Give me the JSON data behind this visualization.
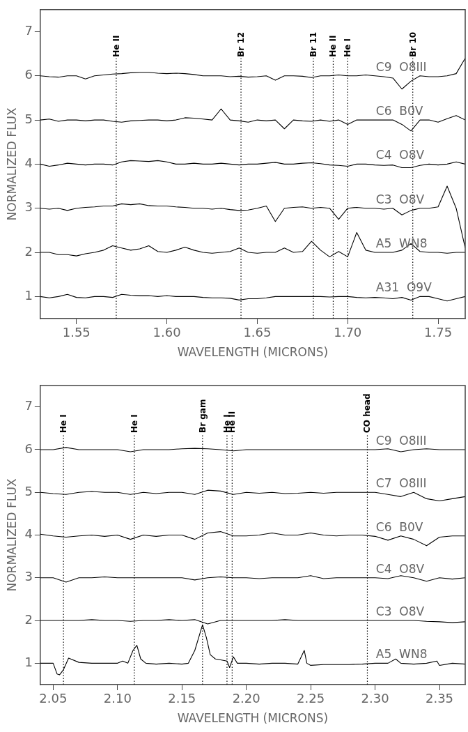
{
  "chart_data": [
    {
      "type": "line",
      "xlabel": "WAVELENGTH (MICRONS)",
      "ylabel": "NORMALIZED FLUX",
      "grid": false,
      "legend": false,
      "marker": "none",
      "line_style": "solid",
      "xlim": [
        1.53,
        1.765
      ],
      "ylim": [
        0.5,
        7.5
      ],
      "xticks": [
        1.55,
        {
          "value": 1.6,
          "label": "1.60"
        },
        1.65,
        {
          "value": 1.7,
          "label": "1.70"
        },
        1.75
      ],
      "yticks": [
        1,
        2,
        3,
        4,
        5,
        6,
        7
      ],
      "x": [
        1.53,
        1.535,
        1.54,
        1.545,
        1.55,
        1.555,
        1.56,
        1.565,
        1.57,
        1.575,
        1.58,
        1.585,
        1.59,
        1.595,
        1.6,
        1.605,
        1.61,
        1.615,
        1.62,
        1.625,
        1.63,
        1.635,
        1.64,
        1.645,
        1.65,
        1.655,
        1.66,
        1.665,
        1.67,
        1.675,
        1.68,
        1.685,
        1.69,
        1.695,
        1.7,
        1.705,
        1.71,
        1.715,
        1.72,
        1.725,
        1.73,
        1.735,
        1.74,
        1.745,
        1.75,
        1.755,
        1.76,
        1.765
      ],
      "series": [
        {
          "name": "C9  O8III",
          "color": "#000000",
          "values": [
            6.0,
            5.98,
            5.97,
            6.0,
            6.0,
            5.93,
            6.0,
            6.02,
            6.04,
            6.05,
            6.07,
            6.08,
            6.08,
            6.06,
            6.05,
            6.06,
            6.05,
            6.03,
            6.0,
            6.0,
            6.0,
            5.98,
            5.99,
            5.97,
            5.98,
            6.0,
            5.9,
            6.0,
            6.0,
            5.99,
            5.96,
            6.0,
            6.0,
            6.02,
            6.0,
            6.0,
            6.02,
            6.0,
            5.98,
            5.95,
            5.7,
            5.88,
            6.0,
            5.98,
            5.98,
            6.0,
            6.05,
            6.4
          ]
        },
        {
          "name": "C6  B0V",
          "color": "#000000",
          "values": [
            5.0,
            5.02,
            4.97,
            5.0,
            5.0,
            4.98,
            5.0,
            5.0,
            4.97,
            4.95,
            4.98,
            4.99,
            5.0,
            5.0,
            4.98,
            5.0,
            5.05,
            5.04,
            5.02,
            5.0,
            5.25,
            5.0,
            4.98,
            4.95,
            5.0,
            4.98,
            5.0,
            4.8,
            5.0,
            4.98,
            4.97,
            5.0,
            4.97,
            5.0,
            4.9,
            5.0,
            5.0,
            5.0,
            5.0,
            5.0,
            4.9,
            4.75,
            5.0,
            5.0,
            4.95,
            5.03,
            5.1,
            5.0
          ]
        },
        {
          "name": "C4  O8V",
          "color": "#000000",
          "values": [
            4.0,
            3.95,
            3.98,
            4.02,
            4.0,
            3.98,
            4.0,
            4.0,
            3.98,
            4.05,
            4.08,
            4.07,
            4.06,
            4.08,
            4.05,
            4.0,
            4.0,
            4.02,
            4.0,
            4.0,
            4.02,
            4.0,
            3.98,
            4.0,
            4.0,
            4.02,
            4.04,
            4.0,
            4.0,
            4.02,
            4.03,
            4.01,
            3.98,
            3.97,
            3.95,
            4.0,
            4.0,
            3.98,
            3.97,
            3.98,
            3.92,
            3.92,
            3.97,
            4.0,
            3.98,
            4.0,
            4.05,
            4.0
          ]
        },
        {
          "name": "C3  O8V",
          "color": "#000000",
          "values": [
            3.0,
            2.98,
            3.0,
            2.95,
            3.0,
            3.02,
            3.03,
            3.05,
            3.05,
            3.1,
            3.08,
            3.1,
            3.06,
            3.05,
            3.05,
            3.03,
            3.02,
            3.0,
            3.0,
            2.98,
            3.0,
            2.97,
            2.95,
            2.96,
            3.0,
            3.05,
            2.7,
            3.0,
            3.02,
            3.03,
            3.0,
            3.02,
            3.0,
            2.75,
            3.0,
            3.02,
            3.0,
            3.0,
            2.98,
            3.0,
            2.85,
            2.95,
            3.0,
            3.0,
            3.03,
            3.5,
            3.0,
            2.1
          ]
        },
        {
          "name": "A5  WN8",
          "color": "#000000",
          "values": [
            2.0,
            2.0,
            1.95,
            1.95,
            1.92,
            1.97,
            2.0,
            2.05,
            2.15,
            2.1,
            2.05,
            2.08,
            2.15,
            2.02,
            2.0,
            2.05,
            2.12,
            2.05,
            2.0,
            1.98,
            2.0,
            2.02,
            2.1,
            2.0,
            1.98,
            2.0,
            2.0,
            2.1,
            2.0,
            2.02,
            2.25,
            2.05,
            1.9,
            2.02,
            1.9,
            2.45,
            2.05,
            2.0,
            2.0,
            2.0,
            2.05,
            2.2,
            2.02,
            2.0,
            2.0,
            1.98,
            2.0,
            2.0
          ]
        },
        {
          "name": "A31  O9V",
          "color": "#000000",
          "values": [
            1.0,
            0.97,
            1.0,
            1.05,
            0.98,
            0.97,
            1.0,
            1.0,
            0.98,
            1.05,
            1.03,
            1.02,
            1.02,
            1.0,
            1.02,
            1.0,
            1.0,
            1.0,
            0.98,
            0.97,
            0.97,
            0.96,
            0.92,
            0.95,
            0.95,
            0.97,
            1.0,
            1.0,
            1.0,
            1.0,
            1.0,
            1.0,
            0.99,
            1.0,
            1.0,
            0.98,
            0.97,
            0.98,
            0.97,
            0.95,
            0.98,
            0.92,
            1.0,
            1.0,
            0.95,
            0.9,
            0.95,
            1.0
          ]
        }
      ],
      "ref_lines": [
        {
          "axis": "x",
          "value": 1.572,
          "label": "He II",
          "line_style": "dotted"
        },
        {
          "axis": "x",
          "value": 1.641,
          "label": "Br 12",
          "line_style": "dotted"
        },
        {
          "axis": "x",
          "value": 1.681,
          "label": "Br 11",
          "line_style": "dotted"
        },
        {
          "axis": "x",
          "value": 1.692,
          "label": "He II",
          "line_style": "dotted"
        },
        {
          "axis": "x",
          "value": 1.7,
          "label": "He I",
          "line_style": "dotted"
        },
        {
          "axis": "x",
          "value": 1.736,
          "label": "Br 10",
          "line_style": "dotted"
        }
      ]
    },
    {
      "type": "line",
      "xlabel": "WAVELENGTH (MICRONS)",
      "ylabel": "NORMALIZED FLUX",
      "grid": false,
      "legend": false,
      "marker": "none",
      "line_style": "solid",
      "xlim": [
        2.04,
        2.37
      ],
      "ylim": [
        0.5,
        7.5
      ],
      "xticks": [
        2.05,
        {
          "value": 2.1,
          "label": "2.10"
        },
        2.15,
        {
          "value": 2.2,
          "label": "2.20"
        },
        2.25,
        {
          "value": 2.3,
          "label": "2.30"
        },
        2.35
      ],
      "yticks": [
        1,
        2,
        3,
        4,
        5,
        6,
        7
      ],
      "x": [
        2.04,
        2.05,
        2.06,
        2.07,
        2.08,
        2.09,
        2.1,
        2.11,
        2.12,
        2.13,
        2.14,
        2.15,
        2.16,
        2.17,
        2.18,
        2.19,
        2.2,
        2.21,
        2.22,
        2.23,
        2.24,
        2.25,
        2.26,
        2.27,
        2.28,
        2.29,
        2.3,
        2.31,
        2.32,
        2.33,
        2.34,
        2.35,
        2.36,
        2.37
      ],
      "series": [
        {
          "name": "C9  O8III",
          "color": "#000000",
          "values": [
            6.0,
            6.0,
            6.05,
            6.0,
            6.0,
            6.0,
            6.0,
            5.95,
            6.0,
            6.0,
            6.0,
            6.02,
            6.03,
            6.02,
            6.0,
            5.97,
            6.0,
            6.0,
            6.0,
            6.0,
            6.0,
            6.0,
            6.0,
            6.0,
            6.0,
            6.0,
            6.0,
            6.02,
            5.95,
            6.0,
            6.02,
            6.0,
            6.0,
            6.0
          ]
        },
        {
          "name": "C7  O8III",
          "color": "#000000",
          "values": [
            5.0,
            4.97,
            4.95,
            5.0,
            5.02,
            5.0,
            5.0,
            4.95,
            5.0,
            4.97,
            5.0,
            5.0,
            4.95,
            5.05,
            5.03,
            4.95,
            5.0,
            4.98,
            5.0,
            4.97,
            4.98,
            5.0,
            4.98,
            5.0,
            5.0,
            5.0,
            5.0,
            4.95,
            4.9,
            5.0,
            4.85,
            4.8,
            4.85,
            4.9
          ]
        },
        {
          "name": "C6  B0V",
          "color": "#000000",
          "values": [
            4.02,
            3.98,
            3.95,
            3.98,
            4.0,
            3.97,
            4.0,
            3.9,
            4.0,
            3.97,
            4.0,
            4.0,
            3.9,
            4.05,
            4.08,
            3.98,
            3.98,
            4.0,
            4.05,
            4.0,
            4.0,
            4.05,
            4.0,
            3.98,
            4.0,
            4.0,
            3.97,
            3.88,
            3.98,
            3.9,
            3.75,
            3.95,
            3.98,
            3.98
          ]
        },
        {
          "name": "C4  O8V",
          "color": "#000000",
          "values": [
            3.0,
            3.0,
            2.9,
            3.0,
            3.0,
            3.02,
            3.0,
            3.0,
            3.0,
            3.0,
            3.0,
            3.0,
            2.95,
            3.0,
            3.02,
            3.0,
            3.0,
            2.98,
            3.0,
            3.0,
            3.0,
            3.05,
            2.98,
            3.0,
            3.0,
            3.0,
            3.0,
            2.98,
            3.05,
            3.0,
            2.92,
            3.0,
            2.97,
            3.0
          ]
        },
        {
          "name": "C3  O8V",
          "color": "#000000",
          "values": [
            2.0,
            2.0,
            2.0,
            2.0,
            2.02,
            2.0,
            2.0,
            1.98,
            2.0,
            2.0,
            2.02,
            2.0,
            2.02,
            1.92,
            2.0,
            2.0,
            2.0,
            2.0,
            2.0,
            2.02,
            2.0,
            2.0,
            2.0,
            2.0,
            2.0,
            2.0,
            2.0,
            2.0,
            2.0,
            2.0,
            1.98,
            1.97,
            1.95,
            1.97
          ]
        },
        {
          "name": "A5  WN8",
          "color": "#000000",
          "x": [
            2.04,
            2.05,
            2.053,
            2.055,
            2.058,
            2.062,
            2.07,
            2.08,
            2.09,
            2.1,
            2.104,
            2.108,
            2.112,
            2.115,
            2.118,
            2.122,
            2.13,
            2.14,
            2.15,
            2.155,
            2.16,
            2.163,
            2.166,
            2.169,
            2.172,
            2.176,
            2.18,
            2.185,
            2.187,
            2.19,
            2.193,
            2.2,
            2.21,
            2.22,
            2.23,
            2.24,
            2.245,
            2.247,
            2.25,
            2.26,
            2.27,
            2.28,
            2.29,
            2.3,
            2.31,
            2.316,
            2.32,
            2.33,
            2.34,
            2.348,
            2.35,
            2.36,
            2.37
          ],
          "values": [
            1.0,
            1.0,
            0.75,
            0.73,
            0.85,
            1.12,
            1.02,
            1.0,
            1.0,
            1.0,
            1.05,
            1.0,
            1.3,
            1.42,
            1.1,
            1.0,
            0.98,
            1.0,
            0.98,
            1.0,
            1.3,
            1.6,
            1.9,
            1.6,
            1.2,
            1.1,
            1.08,
            1.05,
            0.9,
            1.15,
            1.0,
            1.0,
            0.98,
            1.0,
            1.0,
            0.98,
            1.3,
            1.0,
            0.95,
            0.97,
            0.97,
            0.97,
            0.98,
            1.0,
            1.0,
            1.1,
            1.0,
            0.98,
            1.0,
            1.05,
            0.95,
            1.0,
            0.98
          ]
        }
      ],
      "ref_lines": [
        {
          "axis": "x",
          "value": 2.058,
          "label": "He I",
          "line_style": "dotted"
        },
        {
          "axis": "x",
          "value": 2.113,
          "label": "He I",
          "line_style": "dotted"
        },
        {
          "axis": "x",
          "value": 2.166,
          "label": "Br gam",
          "line_style": "dotted"
        },
        {
          "axis": "x",
          "value": 2.185,
          "label": "He I",
          "line_style": "dotted"
        },
        {
          "axis": "x",
          "value": 2.189,
          "label": "He II",
          "line_style": "dotted"
        },
        {
          "axis": "x",
          "value": 2.294,
          "label": "CO head",
          "line_style": "dotted"
        }
      ]
    }
  ]
}
